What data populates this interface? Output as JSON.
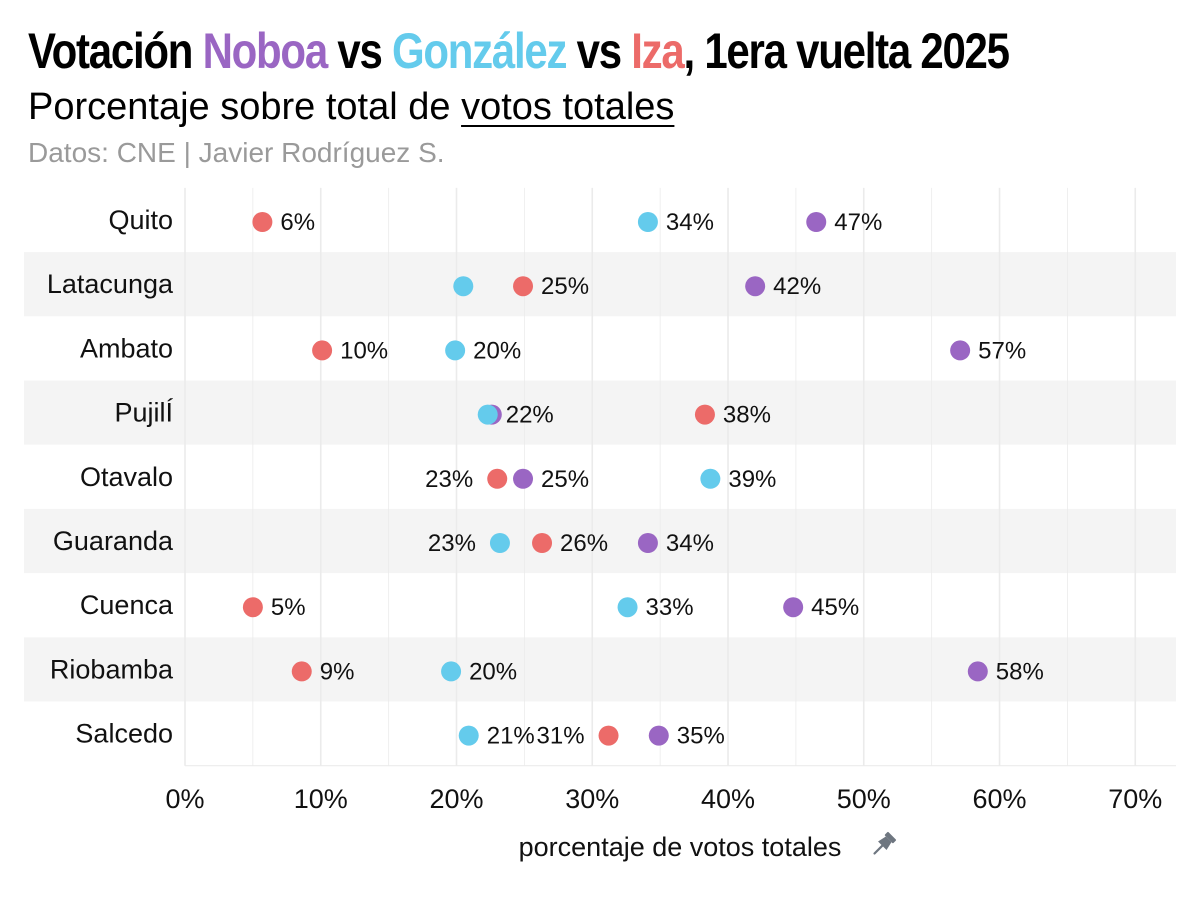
{
  "title": {
    "prefix": "Votación ",
    "noboa": "Noboa",
    "vs1": " vs ",
    "gonzalez": "González",
    "vs2": " vs ",
    "iza": "Iza",
    "suffix": ", 1era vuelta 2025"
  },
  "subtitle": {
    "prefix": "Porcentaje sobre total de ",
    "underlined": "votos totales"
  },
  "caption": "Datos: CNE | Javier Rodríguez S.",
  "colors": {
    "noboa": "#9a66c3",
    "gonzalez": "#64cbec",
    "iza": "#ec6b69",
    "band": "#f4f4f4",
    "grid": "#ebebeb"
  },
  "chart_data": {
    "type": "scatter",
    "title": "Votación Noboa vs González vs Iza, 1era vuelta 2025",
    "subtitle": "Porcentaje sobre total de votos totales",
    "xlabel": "porcentaje de votos totales",
    "xlabel_icon": "pushpin-icon",
    "ylabel": "",
    "xlim": [
      0,
      73
    ],
    "xticks": [
      0,
      10,
      20,
      30,
      40,
      50,
      60,
      70
    ],
    "xtick_labels": [
      "0%",
      "10%",
      "20%",
      "30%",
      "40%",
      "50%",
      "60%",
      "70%"
    ],
    "grid": true,
    "categories": [
      "Quito",
      "Latacunga",
      "Ambato",
      "PujilÍ",
      "Otavalo",
      "Guaranda",
      "Cuenca",
      "Riobamba",
      "Salcedo"
    ],
    "series": [
      {
        "name": "Noboa",
        "color": "#9a66c3",
        "values": [
          46.5,
          42.0,
          57.1,
          22.6,
          24.9,
          34.1,
          44.8,
          58.4,
          34.9
        ],
        "labels": [
          "47%",
          "42%",
          "57%",
          "",
          "25%",
          "34%",
          "45%",
          "58%",
          "35%"
        ]
      },
      {
        "name": "González",
        "color": "#64cbec",
        "values": [
          34.1,
          20.5,
          19.9,
          22.3,
          38.7,
          23.2,
          32.6,
          19.6,
          20.9
        ],
        "labels": [
          "34%",
          "",
          "20%",
          "22%",
          "39%",
          "23%",
          "33%",
          "20%",
          "21%"
        ]
      },
      {
        "name": "Iza",
        "color": "#ec6b69",
        "values": [
          5.7,
          24.9,
          10.1,
          38.3,
          23.0,
          26.3,
          5.0,
          8.6,
          31.2
        ],
        "labels": [
          "6%",
          "25%",
          "10%",
          "38%",
          "23%",
          "26%",
          "5%",
          "9%",
          "31%"
        ]
      }
    ]
  }
}
